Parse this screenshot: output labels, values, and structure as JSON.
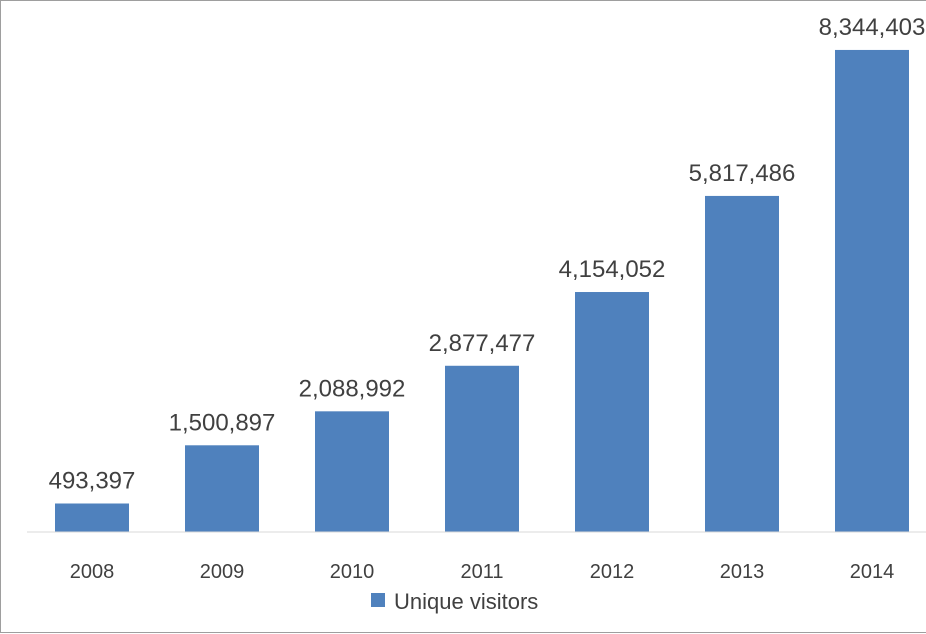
{
  "chart_data": {
    "type": "bar",
    "title": "",
    "xlabel": "",
    "ylabel": "",
    "categories": [
      "2008",
      "2009",
      "2010",
      "2011",
      "2012",
      "2013",
      "2014"
    ],
    "series": [
      {
        "name": "Unique visitors",
        "color": "#4F81BD",
        "values": [
          493397,
          1500897,
          2088992,
          2877477,
          4154052,
          5817486,
          8344403
        ],
        "data_labels": [
          "493,397",
          "1,500,897",
          "2,088,992",
          "2,877,477",
          "4,154,052",
          "5,817,486",
          "8,344,403"
        ]
      }
    ],
    "ylim": [
      0,
      9000000
    ],
    "grid": false,
    "legend": {
      "position": "bottom",
      "entries": [
        "Unique visitors"
      ]
    }
  }
}
